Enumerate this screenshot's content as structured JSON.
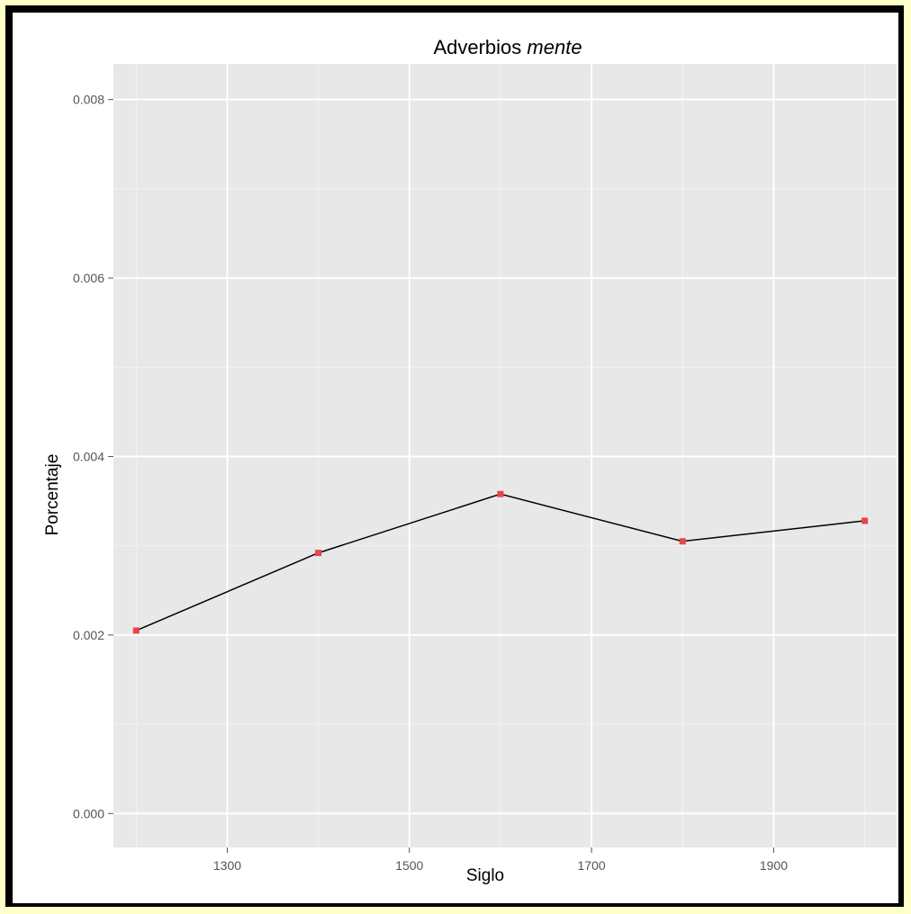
{
  "chart_data": {
    "type": "line",
    "title": "Adverbios",
    "title_italic": "mente",
    "xlabel": "Siglo",
    "ylabel": "Porcentaje",
    "xlim": [
      1175,
      2035
    ],
    "ylim": [
      -0.00038,
      0.0084
    ],
    "x_ticks": [
      1300,
      1500,
      1700,
      1900
    ],
    "x_tick_labels": [
      "1300",
      "1500",
      "1700",
      "1900"
    ],
    "y_ticks": [
      0,
      0.002,
      0.004,
      0.006,
      0.008
    ],
    "y_tick_labels": [
      "0.000",
      "0.002",
      "0.004",
      "0.006",
      "0.008"
    ],
    "grid": true,
    "x": [
      1200,
      1400,
      1600,
      1800,
      2000
    ],
    "series": [
      {
        "values": [
          0.00205,
          0.00292,
          0.00358,
          0.00305,
          0.00328
        ]
      }
    ],
    "colors": {
      "panel": "#e8e8e8",
      "grid_major": "#ffffff",
      "grid_minor": "#f2f2f2",
      "line": "#000000",
      "point": "#e8454a",
      "tick_label": "#555555",
      "border": "#000000",
      "background": "#ffffc8"
    }
  }
}
